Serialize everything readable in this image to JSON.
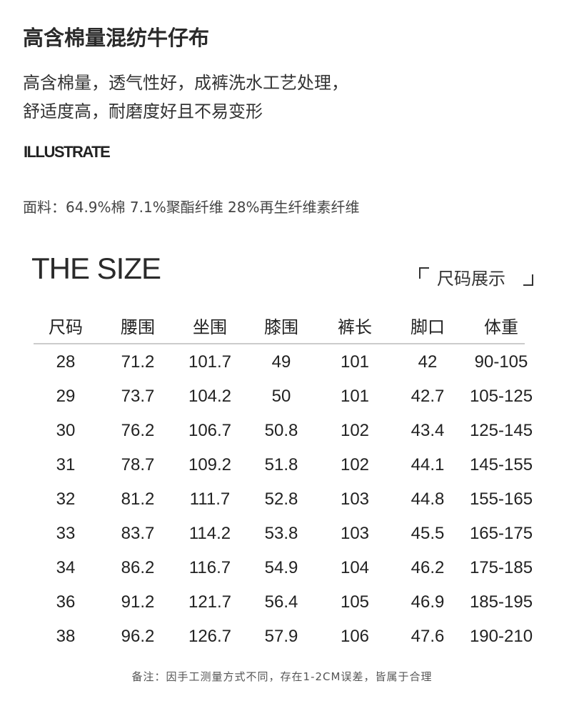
{
  "title": "高含棉量混纺牛仔布",
  "description": [
    "高含棉量，透气性好，成裤洗水工艺处理，",
    "舒适度高，耐磨度好且不易变形"
  ],
  "illustrate_label": "ILLUSTRATE",
  "fabric": "面料：64.9%棉  7.1%聚酯纤维 28%再生纤维素纤维",
  "size_heading": "THE SIZE",
  "size_display_label": "尺码展示",
  "table": {
    "headers": [
      "尺码",
      "腰围",
      "坐围",
      "膝围",
      "裤长",
      "脚口",
      "体重"
    ],
    "rows": [
      [
        "28",
        "71.2",
        "101.7",
        "49",
        "101",
        "42",
        "90-105"
      ],
      [
        "29",
        "73.7",
        "104.2",
        "50",
        "101",
        "42.7",
        "105-125"
      ],
      [
        "30",
        "76.2",
        "106.7",
        "50.8",
        "102",
        "43.4",
        "125-145"
      ],
      [
        "31",
        "78.7",
        "109.2",
        "51.8",
        "102",
        "44.1",
        "145-155"
      ],
      [
        "32",
        "81.2",
        "111.7",
        "52.8",
        "103",
        "44.8",
        "155-165"
      ],
      [
        "33",
        "83.7",
        "114.2",
        "53.8",
        "103",
        "45.5",
        "165-175"
      ],
      [
        "34",
        "86.2",
        "116.7",
        "54.9",
        "104",
        "46.2",
        "175-185"
      ],
      [
        "36",
        "91.2",
        "121.7",
        "56.4",
        "105",
        "46.9",
        "185-195"
      ],
      [
        "38",
        "96.2",
        "126.7",
        "57.9",
        "106",
        "47.6",
        "190-210"
      ]
    ]
  },
  "note": "备注：因手工测量方式不同，存在1-2CM误差，皆属于合理"
}
